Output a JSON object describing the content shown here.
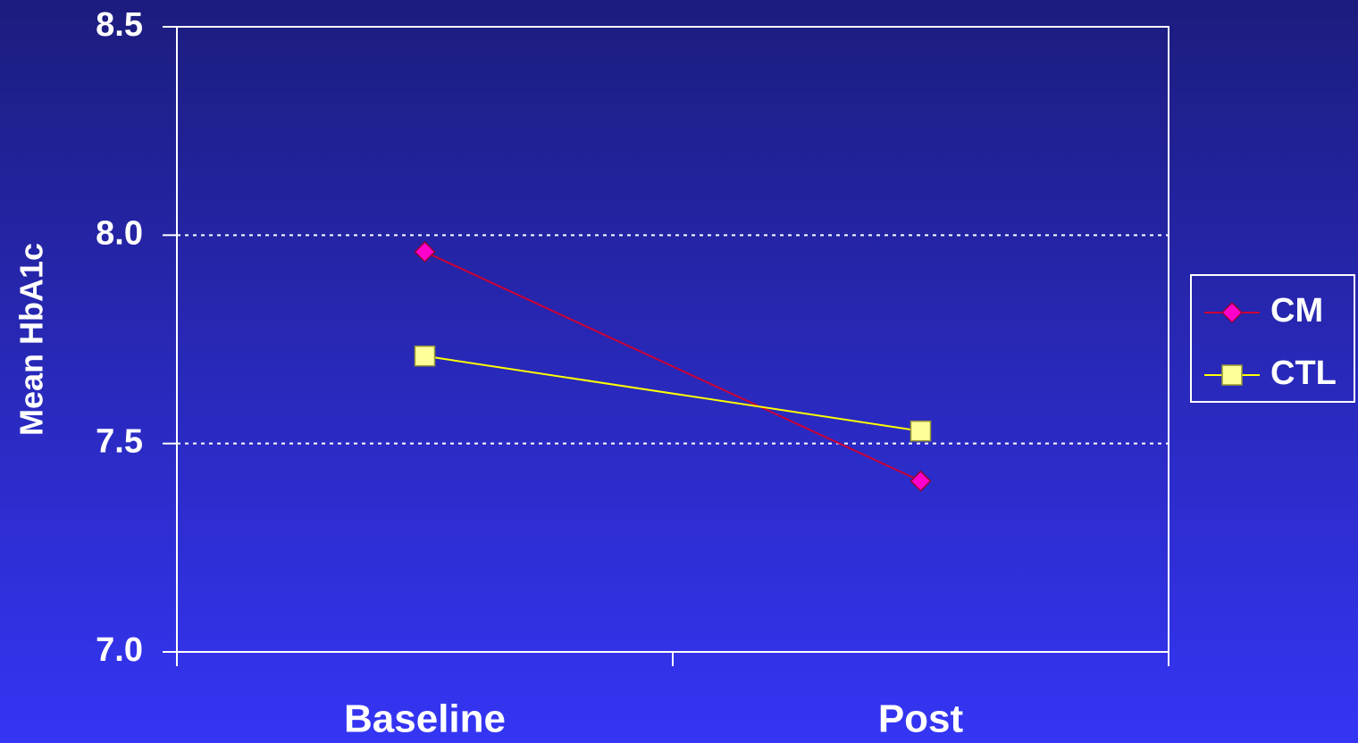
{
  "chart_data": {
    "type": "line",
    "y_label": "Mean HbA1c",
    "categories": [
      "Baseline",
      "Post"
    ],
    "series": [
      {
        "name": "CM",
        "color": "#cc0033",
        "marker_color": "#ff00cc",
        "marker": "diamond",
        "values": [
          7.96,
          7.41
        ]
      },
      {
        "name": "CTL",
        "color": "#ffff00",
        "marker_color": "#ffff99",
        "marker": "square",
        "values": [
          7.71,
          7.53
        ]
      }
    ],
    "ylim": [
      7.0,
      8.5
    ],
    "yticks": [
      {
        "value": 7.0,
        "label": "7.0"
      },
      7.5,
      {
        "value": 8.0,
        "label": "8.0"
      },
      8.5
    ],
    "grid": true,
    "legend": "right"
  }
}
